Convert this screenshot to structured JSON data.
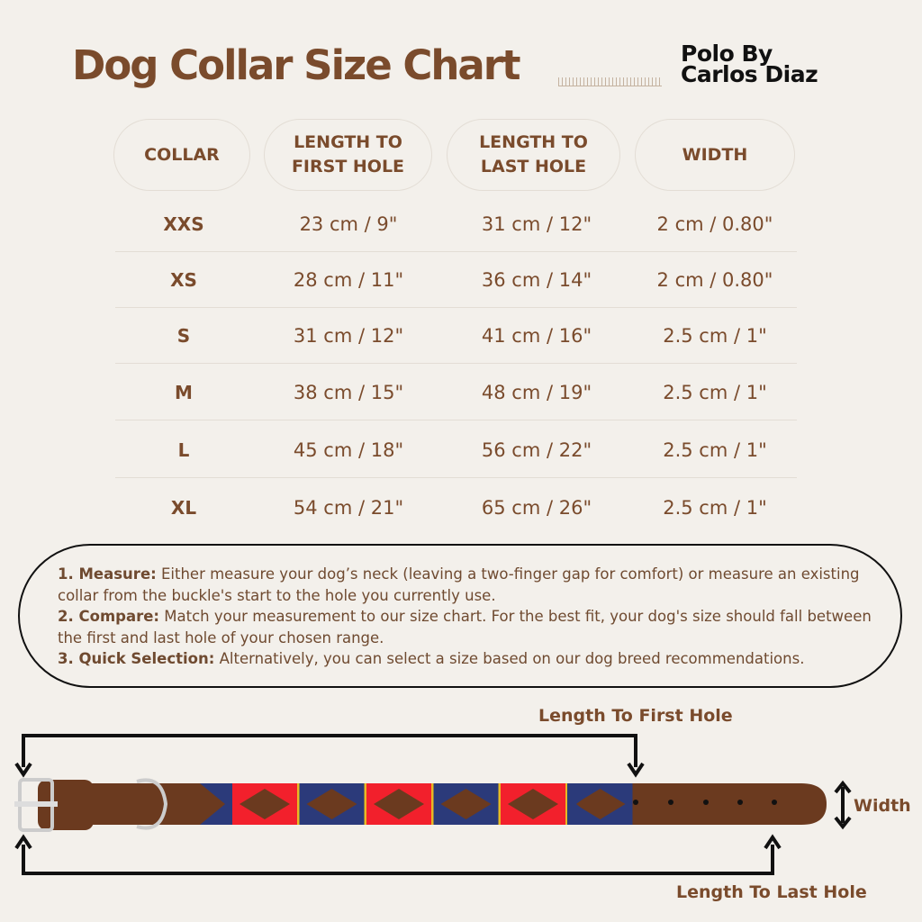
{
  "title": "Dog Collar Size Chart",
  "brand": {
    "line1": "Polo By",
    "line2": "Carlos Diaz"
  },
  "table": {
    "headers": [
      "COLLAR",
      "LENGTH TO FIRST HOLE",
      "LENGTH TO LAST HOLE",
      "WIDTH"
    ],
    "rows": [
      [
        "XXS",
        "23 cm / 9\"",
        "31 cm / 12\"",
        "2 cm / 0.80\""
      ],
      [
        "XS",
        "28 cm / 11\"",
        "36 cm / 14\"",
        "2 cm / 0.80\""
      ],
      [
        "S",
        "31 cm / 12\"",
        "41 cm / 16\"",
        "2.5 cm / 1\""
      ],
      [
        "M",
        "38 cm / 15\"",
        "48 cm / 19\"",
        "2.5 cm / 1\""
      ],
      [
        "L",
        "45 cm / 18\"",
        "56 cm / 22\"",
        "2.5 cm / 1\""
      ],
      [
        "XL",
        "54 cm / 21\"",
        "65 cm / 26\"",
        "2.5 cm / 1\""
      ]
    ]
  },
  "instructions": [
    {
      "label": "1. Measure:",
      "text": " Either measure your dog’s neck (leaving a two-finger gap for comfort) or measure an existing collar from the buckle's start to the hole you currently use."
    },
    {
      "label": "2. Compare:",
      "text": " Match your measurement to our size chart. For the best fit, your dog's size should fall between the first and last hole of your chosen range."
    },
    {
      "label": "3. Quick Selection:",
      "text": " Alternatively, you can select a size based on our dog breed recommendations."
    }
  ],
  "diagram": {
    "first_hole": "Length To First Hole",
    "last_hole": "Length To Last Hole",
    "width": "Width"
  },
  "colors": {
    "brown": "#7a4b2c",
    "leather": "#6b3a1f",
    "navy": "#2b3a7a",
    "red": "#f2202c",
    "gold": "#e8b923",
    "background": "#f3f0eb"
  }
}
